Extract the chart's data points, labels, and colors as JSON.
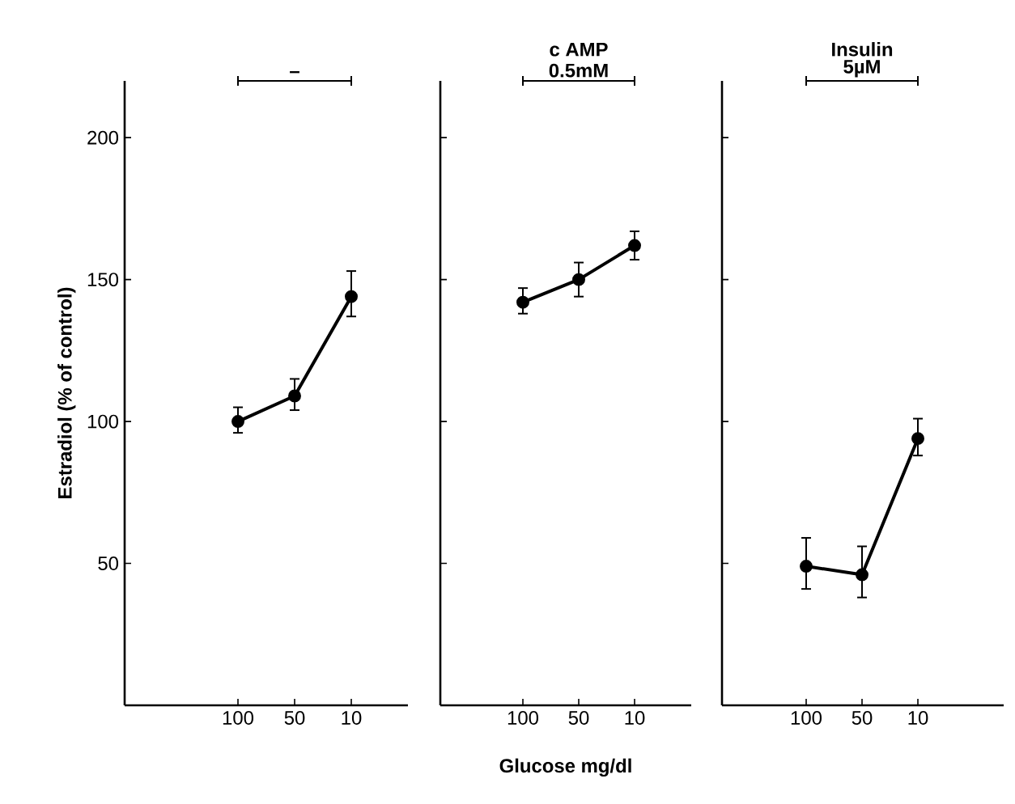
{
  "chart_data": [
    {
      "type": "line",
      "categories": [
        "100",
        "50",
        "10"
      ],
      "ylabel": "Estradiol (% of control)",
      "annotations": [
        "–"
      ],
      "ylim": [
        0,
        220
      ],
      "yticks": [
        50,
        100,
        150,
        200
      ],
      "color": "#000000",
      "marker": "circle",
      "line_style": "solid",
      "values": [
        100,
        109,
        144
      ],
      "errors": [
        [
          96,
          105
        ],
        [
          104,
          115
        ],
        [
          137,
          153
        ]
      ]
    },
    {
      "type": "line",
      "categories": [
        "100",
        "50",
        "10"
      ],
      "xlabel": "Glucose mg/dl",
      "annotations": [
        "c AMP",
        "0.5mM"
      ],
      "ylim": [
        0,
        220
      ],
      "yticks": [
        50,
        100,
        150,
        200
      ],
      "tick_labels": "x",
      "color": "#000000",
      "marker": "circle",
      "line_style": "solid",
      "values": [
        142,
        150,
        162
      ],
      "errors": [
        [
          138,
          147
        ],
        [
          144,
          156
        ],
        [
          157,
          167
        ]
      ]
    },
    {
      "type": "line",
      "categories": [
        "100",
        "50",
        "10"
      ],
      "annotations": [
        "Insulin",
        "5µM"
      ],
      "ylim": [
        0,
        220
      ],
      "yticks": [
        50,
        100,
        150,
        200
      ],
      "tick_labels": "x",
      "color": "#000000",
      "marker": "circle",
      "line_style": "solid",
      "values": [
        49,
        46,
        94
      ],
      "errors": [
        [
          41,
          59
        ],
        [
          38,
          56
        ],
        [
          88,
          101
        ]
      ]
    }
  ]
}
